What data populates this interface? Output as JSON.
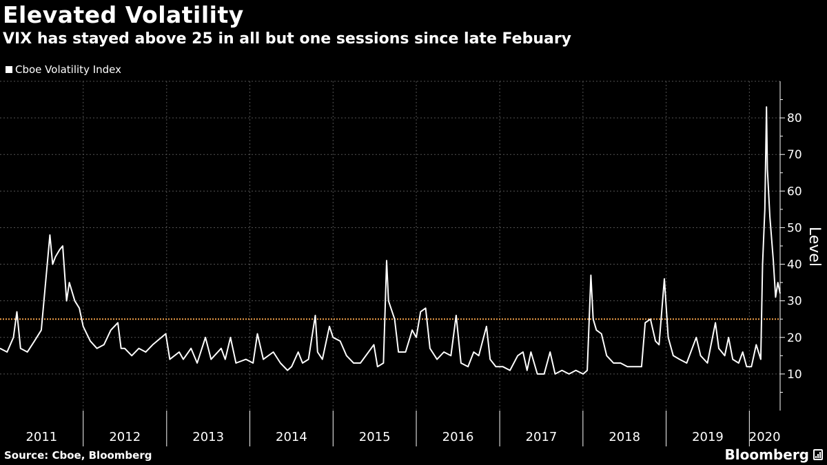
{
  "chart_data": {
    "type": "line",
    "title": "Elevated Volatility",
    "subtitle": "VIX has stayed above 25 in all but one sessions since late Febuary",
    "ylabel": "Level",
    "xlabel": "",
    "ylim": [
      0,
      90
    ],
    "yticks": [
      10,
      20,
      30,
      40,
      50,
      60,
      70,
      80
    ],
    "xlim": [
      "2011-01-01",
      "2020-05-15"
    ],
    "x_tick_labels": [
      "2011",
      "2012",
      "2013",
      "2014",
      "2015",
      "2016",
      "2017",
      "2018",
      "2019",
      "2020"
    ],
    "grid": true,
    "legend_position": "top-left",
    "reference_line": {
      "y": 25,
      "color": "#f5a34a",
      "style": "dotted"
    },
    "series": [
      {
        "name": "Cboe Volatility Index",
        "color": "#ffffff",
        "x": [
          "2011-01-01",
          "2011-02-01",
          "2011-03-01",
          "2011-03-16",
          "2011-04-01",
          "2011-05-01",
          "2011-06-01",
          "2011-07-01",
          "2011-08-08",
          "2011-08-20",
          "2011-09-01",
          "2011-09-20",
          "2011-10-03",
          "2011-10-20",
          "2011-11-01",
          "2011-11-25",
          "2011-12-15",
          "2012-01-01",
          "2012-02-01",
          "2012-03-01",
          "2012-04-01",
          "2012-05-01",
          "2012-06-01",
          "2012-06-15",
          "2012-07-01",
          "2012-08-01",
          "2012-09-01",
          "2012-10-01",
          "2012-11-01",
          "2012-12-28",
          "2013-01-15",
          "2013-02-25",
          "2013-03-15",
          "2013-04-18",
          "2013-05-15",
          "2013-06-20",
          "2013-07-15",
          "2013-08-28",
          "2013-09-15",
          "2013-10-08",
          "2013-11-01",
          "2013-12-15",
          "2014-01-15",
          "2014-02-03",
          "2014-03-01",
          "2014-04-14",
          "2014-05-15",
          "2014-06-15",
          "2014-07-03",
          "2014-08-01",
          "2014-08-20",
          "2014-09-15",
          "2014-10-15",
          "2014-10-25",
          "2014-11-15",
          "2014-12-16",
          "2015-01-01",
          "2015-02-01",
          "2015-03-01",
          "2015-04-01",
          "2015-05-01",
          "2015-06-29",
          "2015-07-15",
          "2015-08-10",
          "2015-08-24",
          "2015-09-01",
          "2015-09-28",
          "2015-10-15",
          "2015-11-15",
          "2015-12-14",
          "2016-01-01",
          "2016-01-20",
          "2016-02-11",
          "2016-03-01",
          "2016-04-01",
          "2016-05-01",
          "2016-06-01",
          "2016-06-24",
          "2016-07-15",
          "2016-08-15",
          "2016-09-09",
          "2016-10-01",
          "2016-11-04",
          "2016-11-20",
          "2016-12-15",
          "2017-01-15",
          "2017-02-15",
          "2017-03-21",
          "2017-04-13",
          "2017-05-01",
          "2017-05-18",
          "2017-06-15",
          "2017-07-15",
          "2017-08-10",
          "2017-09-01",
          "2017-10-01",
          "2017-11-01",
          "2017-12-01",
          "2018-01-02",
          "2018-01-20",
          "2018-02-05",
          "2018-02-15",
          "2018-03-01",
          "2018-03-23",
          "2018-04-15",
          "2018-05-15",
          "2018-06-15",
          "2018-07-15",
          "2018-08-15",
          "2018-09-15",
          "2018-10-01",
          "2018-10-24",
          "2018-11-15",
          "2018-12-01",
          "2018-12-24",
          "2019-01-10",
          "2019-02-01",
          "2019-03-01",
          "2019-04-01",
          "2019-05-13",
          "2019-06-01",
          "2019-07-01",
          "2019-08-05",
          "2019-08-20",
          "2019-09-15",
          "2019-10-02",
          "2019-10-20",
          "2019-11-15",
          "2019-12-03",
          "2019-12-20",
          "2020-01-10",
          "2020-01-31",
          "2020-02-20",
          "2020-02-28",
          "2020-03-09",
          "2020-03-16",
          "2020-03-20",
          "2020-03-31",
          "2020-04-15",
          "2020-04-25",
          "2020-05-05",
          "2020-05-15"
        ],
        "values": [
          17,
          16,
          20,
          27,
          17,
          16,
          19,
          22,
          48,
          40,
          42,
          44,
          45,
          30,
          35,
          30,
          28,
          23,
          19,
          17,
          18,
          22,
          24,
          17,
          17,
          15,
          17,
          16,
          18,
          21,
          14,
          16,
          14,
          17,
          13,
          20,
          14,
          17,
          14,
          20,
          13,
          14,
          13,
          21,
          14,
          16,
          13,
          11,
          12,
          16,
          13,
          14,
          26,
          16,
          14,
          23,
          20,
          19,
          15,
          13,
          13,
          18,
          12,
          13,
          41,
          30,
          25,
          16,
          16,
          22,
          20,
          27,
          28,
          17,
          14,
          16,
          15,
          26,
          13,
          12,
          16,
          15,
          23,
          14,
          12,
          12,
          11,
          15,
          16,
          11,
          16,
          10,
          10,
          16,
          10,
          11,
          10,
          11,
          10,
          11,
          37,
          25,
          22,
          21,
          15,
          13,
          13,
          12,
          12,
          12,
          24,
          25,
          19,
          18,
          36,
          20,
          15,
          14,
          13,
          20,
          15,
          13,
          24,
          17,
          15,
          20,
          14,
          13,
          16,
          12,
          12,
          18,
          14,
          40,
          55,
          83,
          66,
          53,
          41,
          31,
          35,
          32
        ]
      }
    ]
  },
  "source": "Source: Cboe, Bloomberg",
  "brand": "Bloomberg"
}
